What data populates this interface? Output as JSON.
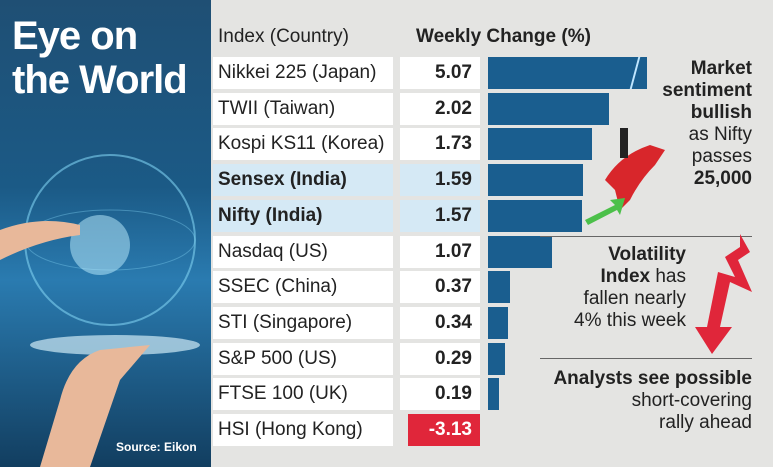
{
  "title_lines": [
    "Eye on",
    "the World"
  ],
  "source": "Source: Eikon",
  "chart_data": {
    "type": "bar",
    "orientation": "horizontal",
    "column_headers": [
      "Index (Country)",
      "Weekly Change (%)"
    ],
    "categories": [
      "Nikkei 225 (Japan)",
      "TWII (Taiwan)",
      "Kospi KS11 (Korea)",
      "Sensex (India)",
      "Nifty (India)",
      "Nasdaq (US)",
      "SSEC (China)",
      "STI (Singapore)",
      "S&P 500 (US)",
      "FTSE 100 (UK)",
      "HSI (Hong Kong)"
    ],
    "values": [
      5.07,
      2.02,
      1.73,
      1.59,
      1.57,
      1.07,
      0.37,
      0.34,
      0.29,
      0.19,
      -3.13
    ],
    "value_labels": [
      "5.07",
      "2.02",
      "1.73",
      "1.59",
      "1.57",
      "1.07",
      "0.37",
      "0.34",
      "0.29",
      "0.19",
      "-3.13"
    ],
    "highlighted": [
      "Sensex (India)",
      "Nifty (India)"
    ],
    "colors": {
      "positive": "#1a5e8f",
      "negative": "#e0263a",
      "highlight_row": "#d5e9f5"
    }
  },
  "notes": {
    "sentiment": {
      "bold": [
        "Market",
        "sentiment",
        "bullish"
      ],
      "plain": [
        "as Nifty",
        "passes"
      ],
      "bold_end": "25,000"
    },
    "volatility": {
      "bold1": "Volatility",
      "bold2": "Index",
      "plain2": " has",
      "plain3": "fallen nearly",
      "plain4": "4% this week"
    },
    "analysts": {
      "bold": "Analysts see possible",
      "plain1": "short-covering",
      "plain2": "rally ahead"
    }
  }
}
